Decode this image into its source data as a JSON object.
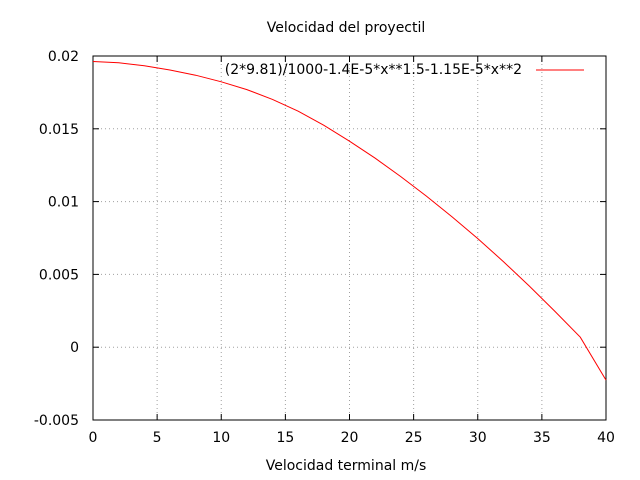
{
  "chart_data": {
    "type": "line",
    "title": "Velocidad del proyectil",
    "xlabel": "Velocidad terminal m/s",
    "ylabel": "",
    "xlim": [
      0,
      40
    ],
    "ylim": [
      -0.005,
      0.02
    ],
    "x_ticks": [
      0,
      5,
      10,
      15,
      20,
      25,
      30,
      35,
      40
    ],
    "x_tick_labels": [
      "0",
      "5",
      "10",
      "15",
      "20",
      "25",
      "30",
      "35",
      "40"
    ],
    "y_ticks": [
      -0.005,
      0,
      0.005,
      0.01,
      0.015,
      0.02
    ],
    "y_tick_labels": [
      "-0.005",
      "0",
      "0.005",
      "0.01",
      "0.015",
      "0.02"
    ],
    "grid": true,
    "legend": {
      "position": "top-right"
    },
    "series": [
      {
        "name": "(2*9.81)/1000-1.4E-5*x**1.5-1.15E-5*x**2",
        "color": "#ff0000",
        "x": [
          0,
          2,
          4,
          6,
          8,
          10,
          12,
          14,
          16,
          18,
          20,
          22,
          24,
          26,
          28,
          30,
          32,
          34,
          36,
          38,
          40
        ],
        "y": [
          0.01962,
          0.01953,
          0.01933,
          0.01904,
          0.01868,
          0.01823,
          0.01769,
          0.01702,
          0.01621,
          0.01524,
          0.01415,
          0.01298,
          0.01172,
          0.01038,
          0.00895,
          0.00746,
          0.00588,
          0.00422,
          0.00248,
          0.00069,
          -0.00226
        ]
      }
    ]
  }
}
